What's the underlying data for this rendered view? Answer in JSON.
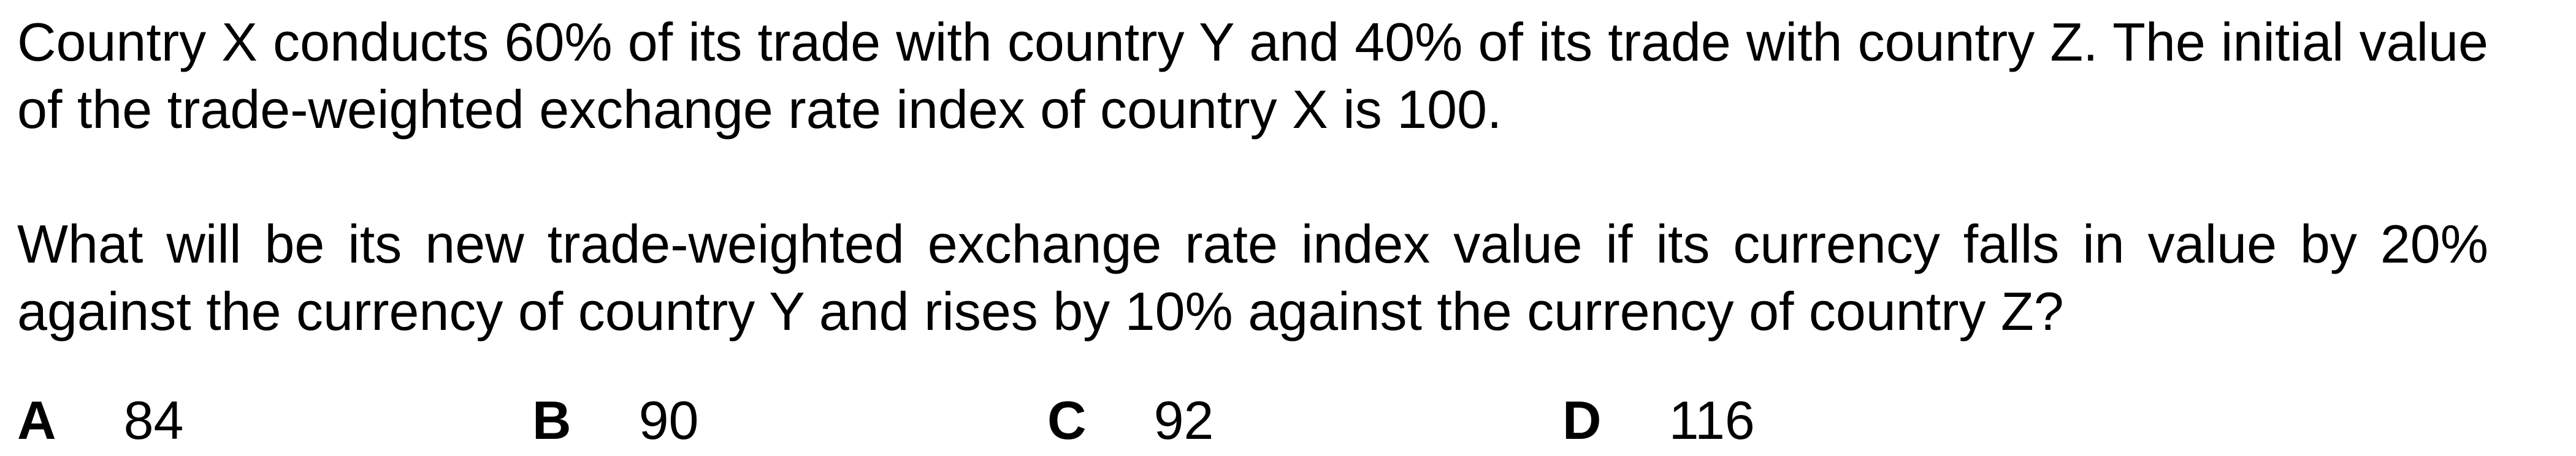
{
  "question": {
    "paragraph_1": "Country X conducts 60% of its trade with country Y and 40% of its trade with country Z. The initial value of the trade-weighted exchange rate index of country X is 100.",
    "paragraph_2": "What will be its new trade-weighted exchange rate index value if its currency falls in value by 20% against the currency of country Y and rises by 10% against the currency of country Z?"
  },
  "options": [
    {
      "letter": "A",
      "value": "84"
    },
    {
      "letter": "B",
      "value": "90"
    },
    {
      "letter": "C",
      "value": "92"
    },
    {
      "letter": "D",
      "value": "116"
    }
  ]
}
